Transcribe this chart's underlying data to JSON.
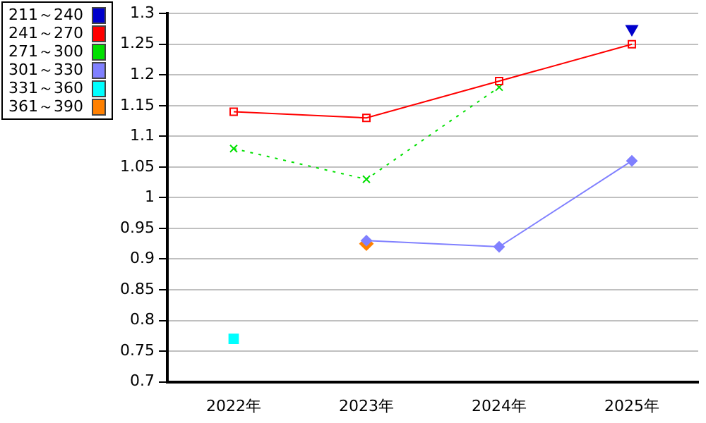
{
  "chart_data": {
    "type": "line",
    "categories": [
      "2022年",
      "2023年",
      "2024年",
      "2025年"
    ],
    "ylim": [
      0.7,
      1.3
    ],
    "yticks": [
      0.7,
      0.75,
      0.8,
      0.85,
      0.9,
      0.95,
      1,
      1.05,
      1.1,
      1.15,
      1.2,
      1.25,
      1.3
    ],
    "grid": "y",
    "legend": "top left",
    "series": [
      {
        "name": "211～240",
        "color": "#0000cc",
        "marker": "triangle",
        "values": [
          null,
          null,
          null,
          1.275
        ]
      },
      {
        "name": "241～270",
        "color": "#ff0000",
        "marker": "square",
        "line_style": "solid",
        "values": [
          1.14,
          1.13,
          1.19,
          1.25
        ]
      },
      {
        "name": "271～300",
        "color": "#00e000",
        "marker": "cross",
        "line_style": "dotted",
        "values": [
          1.08,
          1.03,
          1.18,
          null
        ]
      },
      {
        "name": "301～330",
        "color": "#8080ff",
        "marker": "diamond",
        "line_style": "solid",
        "values": [
          null,
          0.93,
          0.92,
          1.06
        ]
      },
      {
        "name": "331～360",
        "color": "#00ffff",
        "marker": "square",
        "values": [
          0.77,
          null,
          null,
          null
        ]
      },
      {
        "name": "361～390",
        "color": "#ff8000",
        "marker": "diamond",
        "values": [
          null,
          0.925,
          null,
          null
        ]
      }
    ]
  }
}
